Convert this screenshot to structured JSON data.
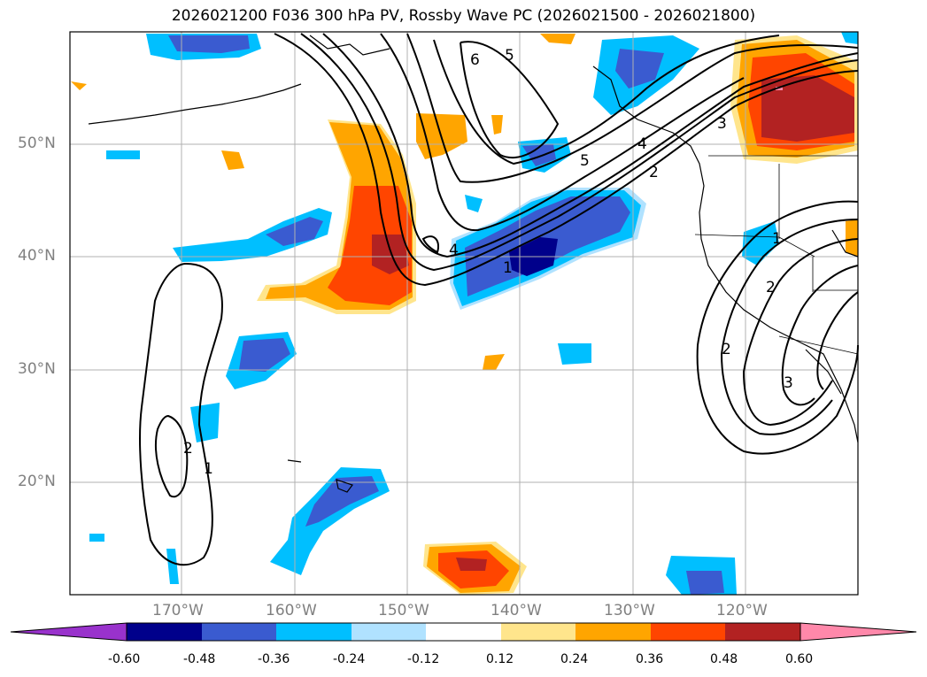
{
  "title": "2026021200 F036 300 hPa PV, Rossby Wave PC (2026021500 - 2026021800)",
  "lat_labels": [
    "50°N",
    "40°N",
    "30°N",
    "20°N"
  ],
  "lon_labels": [
    "170°W",
    "160°W",
    "150°W",
    "140°W",
    "130°W",
    "120°W"
  ],
  "colorbar": {
    "ticks": [
      "-0.60",
      "-0.48",
      "-0.36",
      "-0.24",
      "-0.12",
      "0.12",
      "0.24",
      "0.36",
      "0.48",
      "0.60"
    ],
    "colors": [
      "#9932cc",
      "#00008b",
      "#3a5bd0",
      "#00bfff",
      "#b0e2ff",
      "#ffffff",
      "#ffe58c",
      "#ffa500",
      "#ff4500",
      "#b22222",
      "#ff88aa"
    ]
  },
  "contour_labels": [
    "6",
    "5",
    "5",
    "4",
    "3",
    "2",
    "1",
    "4",
    "2",
    "1",
    "2",
    "1",
    "2",
    "3"
  ],
  "map": {
    "ocean_color": "#ffffff",
    "grid_color": "#b0b0b0",
    "contour_color": "#000000",
    "coastline_color": "#000000"
  }
}
